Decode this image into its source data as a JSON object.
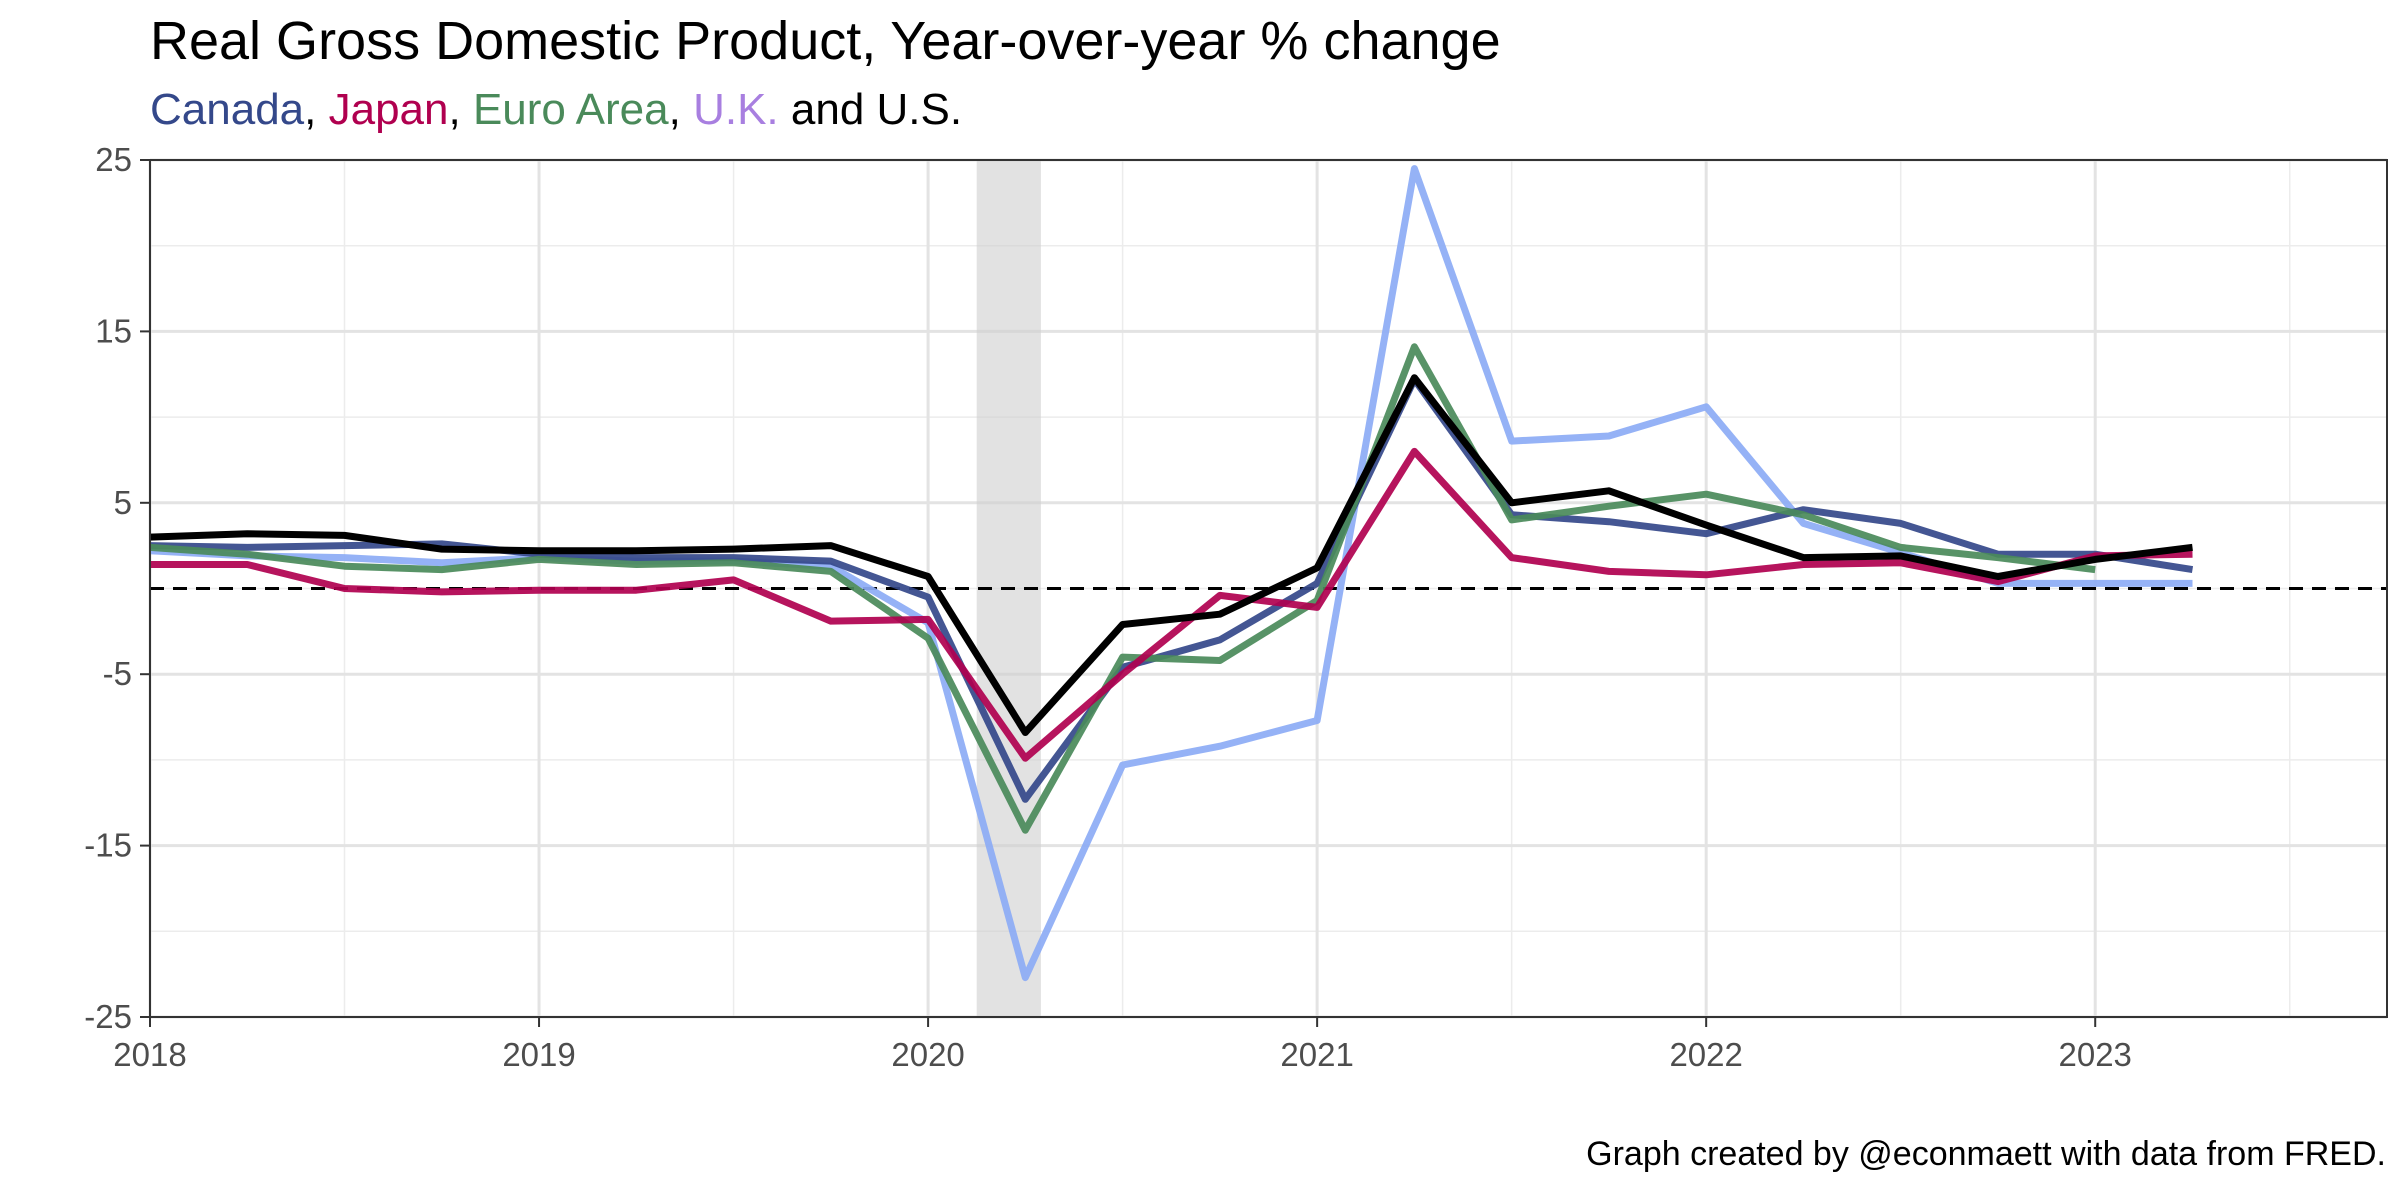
{
  "title": "Real Gross Domestic Product, Year-over-year % change",
  "subtitle": {
    "parts": [
      {
        "text": "Canada",
        "color": "#34488a"
      },
      {
        "text": ", ",
        "color": "#000000"
      },
      {
        "text": "Japan",
        "color": "#b0004f"
      },
      {
        "text": ", ",
        "color": "#000000"
      },
      {
        "text": "Euro Area",
        "color": "#4a8a5a"
      },
      {
        "text": ", ",
        "color": "#000000"
      },
      {
        "text": "U.K.",
        "color": "#a87fe0"
      },
      {
        "text": " and U.S.",
        "color": "#000000"
      }
    ]
  },
  "caption": "Graph created by @econmaett with data from FRED.",
  "chart_data": {
    "type": "line",
    "x_axis": {
      "ticks": [
        2018,
        2019,
        2020,
        2021,
        2022,
        2023
      ],
      "range": [
        2018,
        2023.75
      ]
    },
    "y_axis": {
      "ticks": [
        -25,
        -15,
        -5,
        5,
        15,
        25
      ],
      "range": [
        -25,
        25
      ]
    },
    "grid": true,
    "reference_line": {
      "y": 0,
      "style": "dashed"
    },
    "recession_band": {
      "x_start": 2020.125,
      "x_end": 2020.29
    },
    "x": [
      2018,
      2018.25,
      2018.5,
      2018.75,
      2019,
      2019.25,
      2019.5,
      2019.75,
      2020,
      2020.25,
      2020.5,
      2020.75,
      2021,
      2021.25,
      2021.5,
      2021.75,
      2022,
      2022.25,
      2022.5,
      2022.75,
      2023,
      2023.25
    ],
    "series": [
      {
        "name": "U.K.",
        "color": "#8cabf5",
        "values": [
          2.2,
          1.9,
          1.8,
          1.5,
          1.8,
          1.6,
          1.6,
          1.3,
          -2.0,
          -22.7,
          -10.3,
          -9.2,
          -7.7,
          24.5,
          8.6,
          8.9,
          10.6,
          3.8,
          2.1,
          0.3,
          0.3,
          0.3
        ]
      },
      {
        "name": "Canada",
        "color": "#34488a",
        "values": [
          2.5,
          2.4,
          2.5,
          2.6,
          2.0,
          1.8,
          1.8,
          1.6,
          -0.5,
          -12.3,
          -4.6,
          -3.0,
          0.3,
          12.2,
          4.3,
          3.9,
          3.2,
          4.6,
          3.8,
          2.0,
          2.0,
          1.1
        ]
      },
      {
        "name": "Euro Area",
        "color": "#4a8a5a",
        "values": [
          2.4,
          2.0,
          1.3,
          1.1,
          1.7,
          1.4,
          1.5,
          1.0,
          -2.9,
          -14.1,
          -4.0,
          -4.2,
          -0.7,
          14.1,
          4.0,
          4.8,
          5.5,
          4.3,
          2.4,
          1.8,
          1.1,
          null
        ]
      },
      {
        "name": "Japan",
        "color": "#b0004f",
        "values": [
          1.4,
          1.4,
          0.0,
          -0.2,
          -0.1,
          -0.1,
          0.5,
          -1.9,
          -1.8,
          -9.9,
          -5.0,
          -0.4,
          -1.1,
          8.0,
          1.8,
          1.0,
          0.8,
          1.4,
          1.5,
          0.4,
          1.9,
          2.0
        ]
      },
      {
        "name": "U.S.",
        "color": "#000000",
        "values": [
          3.0,
          3.2,
          3.1,
          2.3,
          2.2,
          2.2,
          2.3,
          2.5,
          0.7,
          -8.4,
          -2.1,
          -1.5,
          1.2,
          12.3,
          5.0,
          5.7,
          3.7,
          1.8,
          1.9,
          0.7,
          1.7,
          2.4
        ]
      }
    ]
  }
}
